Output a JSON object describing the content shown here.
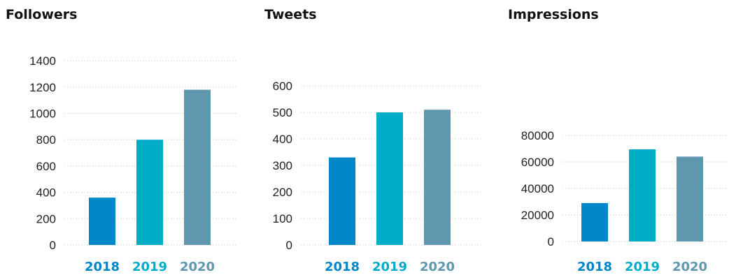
{
  "colors": {
    "year_2018": "#0087c9",
    "year_2019": "#00adc8",
    "year_2020": "#5f97ae"
  },
  "chart_data": [
    {
      "type": "bar",
      "title": "Followers",
      "categories": [
        "2018",
        "2019",
        "2020"
      ],
      "values": [
        360,
        800,
        1180
      ],
      "yticks": [
        "0",
        "200",
        "400",
        "600",
        "800",
        "1000",
        "1200",
        "1400"
      ],
      "ylim": [
        0,
        1400
      ],
      "grid": true,
      "legend": "none"
    },
    {
      "type": "bar",
      "title": "Tweets",
      "categories": [
        "2018",
        "2019",
        "2020"
      ],
      "values": [
        330,
        500,
        510
      ],
      "yticks": [
        "0",
        "100",
        "200",
        "300",
        "400",
        "500",
        "600"
      ],
      "ylim": [
        0,
        600
      ],
      "grid": true,
      "legend": "none"
    },
    {
      "type": "bar",
      "title": "Impressions",
      "categories": [
        "2018",
        "2019",
        "2020"
      ],
      "values": [
        29000,
        69500,
        64000
      ],
      "yticks": [
        "0",
        "20000",
        "40000",
        "60000",
        "80000"
      ],
      "ylim": [
        0,
        80000
      ],
      "grid": true,
      "legend": "none"
    }
  ]
}
